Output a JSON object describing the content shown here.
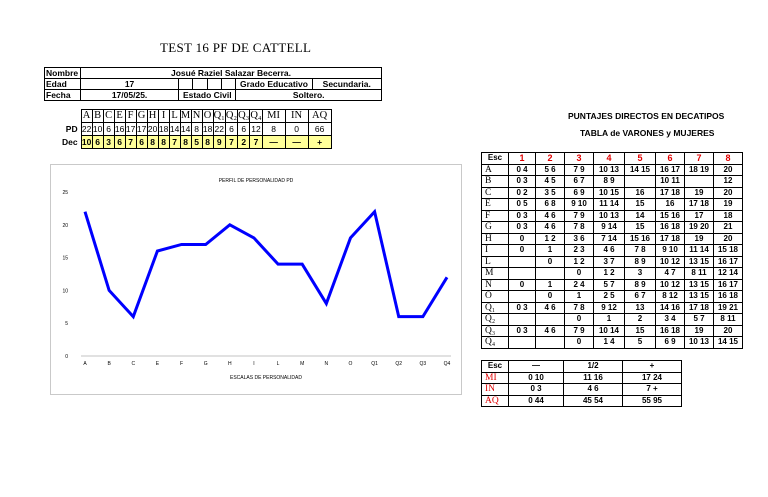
{
  "title": "TEST 16 PF DE CATTELL",
  "info": {
    "nombre_label": "Nombre",
    "nombre_value": "Josué Raziel Salazar Becerra.",
    "edad_label": "Edad",
    "edad_value": "17",
    "grado_label": "Grado Educativo",
    "grado_value": "Secundaria.",
    "fecha_label": "Fecha",
    "fecha_value": "17/05/25.",
    "estado_label": "Estado Civil",
    "estado_value": "Soltero."
  },
  "scores": {
    "factors": [
      "A",
      "B",
      "C",
      "E",
      "F",
      "G",
      "H",
      "I",
      "L",
      "M",
      "N",
      "O",
      "Q₁",
      "Q₂",
      "Q₃",
      "Q₄",
      "MI",
      "IN",
      "AQ"
    ],
    "pd_label": "PD",
    "pd": [
      "22",
      "10",
      "6",
      "16",
      "17",
      "17",
      "20",
      "18",
      "14",
      "14",
      "8",
      "18",
      "22",
      "6",
      "6",
      "12",
      "8",
      "0",
      "66"
    ],
    "dec_label": "Dec",
    "dec": [
      "10",
      "6",
      "3",
      "6",
      "7",
      "6",
      "8",
      "8",
      "7",
      "8",
      "5",
      "8",
      "9",
      "7",
      "2",
      "7",
      "—",
      "—",
      "+"
    ]
  },
  "chart_data": {
    "type": "line",
    "title": "PERFIL DE PERSONALIDAD PD",
    "xlabel": "ESCALAS DE PERSONALIDAD",
    "ylabel": "",
    "categories": [
      "A",
      "B",
      "C",
      "E",
      "F",
      "G",
      "H",
      "I",
      "L",
      "M",
      "N",
      "O",
      "Q1",
      "Q2",
      "Q3",
      "Q4"
    ],
    "series": [
      {
        "values": [
          22,
          10,
          6,
          16,
          17,
          17,
          20,
          18,
          14,
          14,
          8,
          18,
          22,
          6,
          6,
          12
        ]
      }
    ],
    "ylim": [
      0,
      25
    ],
    "yticks": [
      0,
      5,
      10,
      15,
      20,
      25
    ],
    "line_color": "#0000ff",
    "grid": false
  },
  "decatipos": {
    "title1": "PUNTAJES DIRECTOS EN DECATIPOS",
    "title2": "TABLA de VARONES y MUJERES",
    "header": [
      "Esc",
      "1",
      "2",
      "3",
      "4",
      "5",
      "6",
      "7",
      "8"
    ],
    "rows": [
      [
        "A",
        "0 4",
        "5 6",
        "7 9",
        "10 13",
        "14 15",
        "16 17",
        "18 19",
        "20"
      ],
      [
        "B",
        "0 3",
        "4 5",
        "6 7",
        "8 9",
        "",
        "10 11",
        "",
        "12"
      ],
      [
        "C",
        "0 2",
        "3 5",
        "6 9",
        "10 15",
        "16",
        "17 18",
        "19",
        "20"
      ],
      [
        "E",
        "0 5",
        "6 8",
        "9 10",
        "11 14",
        "15",
        "16",
        "17 18",
        "19"
      ],
      [
        "F",
        "0 3",
        "4 6",
        "7 9",
        "10 13",
        "14",
        "15 16",
        "17",
        "18"
      ],
      [
        "G",
        "0 3",
        "4 6",
        "7 8",
        "9 14",
        "15",
        "16 18",
        "19 20",
        "21"
      ],
      [
        "H",
        "0",
        "1 2",
        "3 6",
        "7 14",
        "15 16",
        "17 18",
        "19",
        "20"
      ],
      [
        "I",
        "0",
        "1",
        "2 3",
        "4 6",
        "7 8",
        "9 10",
        "11 14",
        "15 18"
      ],
      [
        "L",
        "",
        "0",
        "1 2",
        "3 7",
        "8 9",
        "10 12",
        "13 15",
        "16 17"
      ],
      [
        "M",
        "",
        "",
        "0",
        "1 2",
        "3",
        "4 7",
        "8 11",
        "12 14"
      ],
      [
        "N",
        "0",
        "1",
        "2 4",
        "5 7",
        "8 9",
        "10 12",
        "13 15",
        "16 17"
      ],
      [
        "O",
        "",
        "0",
        "1",
        "2 5",
        "6 7",
        "8 12",
        "13 15",
        "16 18"
      ],
      [
        "Q₁",
        "0 3",
        "4 6",
        "7 8",
        "9 12",
        "13",
        "14 16",
        "17 18",
        "19 21"
      ],
      [
        "Q₂",
        "",
        "",
        "0",
        "1",
        "2",
        "3 4",
        "5 7",
        "8 11"
      ],
      [
        "Q₃",
        "0 3",
        "4 6",
        "7 9",
        "10 14",
        "15",
        "16 18",
        "19",
        "20"
      ],
      [
        "Q₄",
        "",
        "",
        "0",
        "1 4",
        "5",
        "6 9",
        "10 13",
        "14 15"
      ]
    ]
  },
  "indices": {
    "header": [
      "Esc",
      "—",
      "1/2",
      "+"
    ],
    "rows": [
      [
        "MI",
        "0 10",
        "11 16",
        "17 24"
      ],
      [
        "IN",
        "0 3",
        "4 6",
        "7 +"
      ],
      [
        "AQ",
        "0 44",
        "45 54",
        "55 95"
      ]
    ]
  }
}
